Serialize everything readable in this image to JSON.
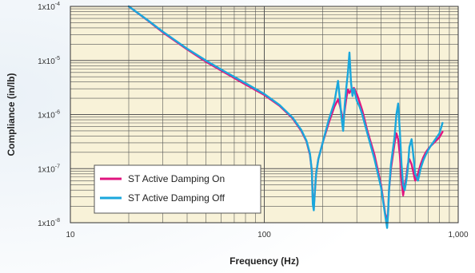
{
  "chart_data": {
    "type": "line",
    "xlabel": "Frequency (Hz)",
    "ylabel": "Compliance (in/lb)",
    "x_scale": "log",
    "y_scale": "log",
    "xlim": [
      10,
      1000
    ],
    "ylim": [
      1e-08,
      0.0001
    ],
    "x_ticks": [
      {
        "value": 10,
        "label": "10"
      },
      {
        "value": 100,
        "label": "100"
      },
      {
        "value": 1000,
        "label": "1,000"
      }
    ],
    "y_ticks": [
      {
        "value": 0.0001,
        "base": "1x10",
        "exp": "-4"
      },
      {
        "value": 1e-05,
        "base": "1x10",
        "exp": "-5"
      },
      {
        "value": 1e-06,
        "base": "1x10",
        "exp": "-6"
      },
      {
        "value": 1e-07,
        "base": "1x10",
        "exp": "-7"
      },
      {
        "value": 1e-08,
        "base": "1x10",
        "exp": "-8"
      }
    ],
    "grid": true,
    "legend_position": "bottom-left",
    "colors": {
      "background": "#f8f2d8",
      "grid": "#555555",
      "frame": "#333333"
    },
    "series": [
      {
        "name": "ST Active Damping On",
        "color": "#e0147f",
        "x": [
          20,
          25,
          30,
          40,
          50,
          60,
          80,
          100,
          120,
          140,
          155,
          165,
          172,
          176,
          178,
          180,
          182,
          185,
          190,
          200,
          215,
          230,
          240,
          245,
          250,
          255,
          260,
          265,
          270,
          275,
          280,
          290,
          300,
          310,
          320,
          340,
          370,
          400,
          420,
          430,
          435,
          440,
          450,
          470,
          480,
          490,
          500,
          510,
          520,
          530,
          540,
          550,
          560,
          575,
          600,
          620,
          640,
          660,
          680,
          700,
          720,
          750,
          800,
          830
        ],
        "y": [
          0.0001,
          5.5e-05,
          3.3e-05,
          1.6e-05,
          9.5e-06,
          6.5e-06,
          3.6e-06,
          2.3e-06,
          1.45e-06,
          8.5e-07,
          5e-07,
          3.2e-07,
          1.8e-07,
          9e-08,
          2.5e-08,
          1.9e-08,
          3.5e-08,
          8e-08,
          1.5e-07,
          3e-07,
          7e-07,
          1.4e-06,
          1.9e-06,
          1.5e-06,
          1.1e-06,
          7e-07,
          1.2e-06,
          2e-06,
          2.9e-06,
          2.5e-06,
          2.8e-06,
          3.1e-06,
          2.4e-06,
          1.7e-06,
          1.2e-06,
          5e-07,
          1.8e-07,
          5e-08,
          1.5e-08,
          1.1e-08,
          1.5e-08,
          4e-08,
          1e-07,
          3e-07,
          4.5e-07,
          3.5e-07,
          1.8e-07,
          6e-08,
          3.2e-08,
          5e-08,
          7e-08,
          1.2e-07,
          1.5e-07,
          1.2e-07,
          6e-08,
          8e-08,
          1.2e-07,
          1.6e-07,
          2e-07,
          2.3e-07,
          2.6e-07,
          3e-07,
          3.8e-07,
          4.8e-07
        ]
      },
      {
        "name": "ST Active Damping Off",
        "color": "#1aa7dc",
        "x": [
          20,
          25,
          30,
          40,
          50,
          60,
          80,
          100,
          120,
          140,
          155,
          165,
          172,
          176,
          178,
          180,
          182,
          185,
          190,
          200,
          215,
          230,
          240,
          245,
          250,
          255,
          260,
          265,
          270,
          275,
          280,
          285,
          290,
          300,
          310,
          320,
          340,
          370,
          400,
          420,
          430,
          435,
          440,
          450,
          470,
          480,
          490,
          500,
          510,
          520,
          530,
          540,
          550,
          560,
          575,
          590,
          600,
          620,
          640,
          660,
          680,
          700,
          720,
          750,
          800,
          830
        ],
        "y": [
          0.0001,
          5.6e-05,
          3.4e-05,
          1.65e-05,
          1e-05,
          6.8e-06,
          3.8e-06,
          2.4e-06,
          1.5e-06,
          8.8e-07,
          5.2e-07,
          3.3e-07,
          1.9e-07,
          9e-08,
          2.2e-08,
          1.7e-08,
          3.5e-08,
          8e-08,
          1.5e-07,
          3e-07,
          8e-07,
          1.7e-06,
          4.2e-06,
          2e-06,
          9e-07,
          5e-07,
          1.5e-06,
          3.2e-06,
          6e-06,
          1.4e-05,
          4e-06,
          2.2e-06,
          3e-06,
          1.8e-06,
          1.4e-06,
          1e-06,
          4.5e-07,
          1.5e-07,
          4.5e-08,
          1.4e-08,
          8e-09,
          1.5e-08,
          4e-08,
          1.2e-07,
          4e-07,
          1e-06,
          1.6e-06,
          5e-07,
          1.2e-07,
          5e-08,
          4e-08,
          6e-08,
          1e-07,
          2.5e-07,
          3.5e-07,
          1.5e-07,
          8e-08,
          6e-08,
          1e-07,
          1.4e-07,
          1.8e-07,
          2.2e-07,
          2.6e-07,
          3.2e-07,
          4.5e-07,
          7e-07
        ]
      }
    ]
  }
}
